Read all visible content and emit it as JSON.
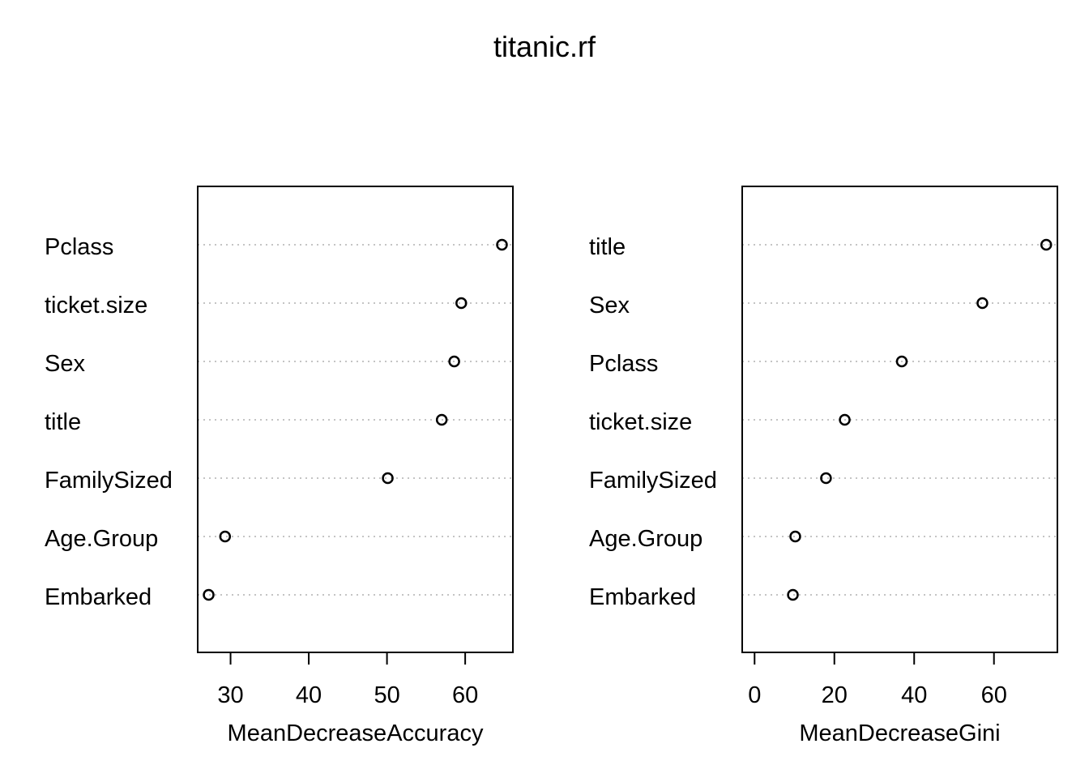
{
  "title": "titanic.rf",
  "chart_data": [
    {
      "type": "scatter",
      "variant": "dotchart",
      "categories": [
        "Pclass",
        "ticket.size",
        "Sex",
        "title",
        "FamilySized",
        "Age.Group",
        "Embarked"
      ],
      "values": [
        64.7,
        59.5,
        58.6,
        57.0,
        50.1,
        29.3,
        27.2
      ],
      "xlabel": "MeanDecreaseAccuracy",
      "xlim": [
        25.8,
        66.1
      ],
      "xticks": [
        30,
        40,
        50,
        60
      ],
      "grid": "dotted horizontal",
      "marker": "open circle"
    },
    {
      "type": "scatter",
      "variant": "dotchart",
      "categories": [
        "title",
        "Sex",
        "Pclass",
        "ticket.size",
        "FamilySized",
        "Age.Group",
        "Embarked"
      ],
      "values": [
        73.1,
        57.1,
        36.9,
        22.6,
        17.9,
        10.2,
        9.6
      ],
      "xlabel": "MeanDecreaseGini",
      "xlim": [
        -3.1,
        75.9
      ],
      "xticks": [
        0,
        20,
        40,
        60
      ],
      "grid": "dotted horizontal",
      "marker": "open circle"
    }
  ]
}
